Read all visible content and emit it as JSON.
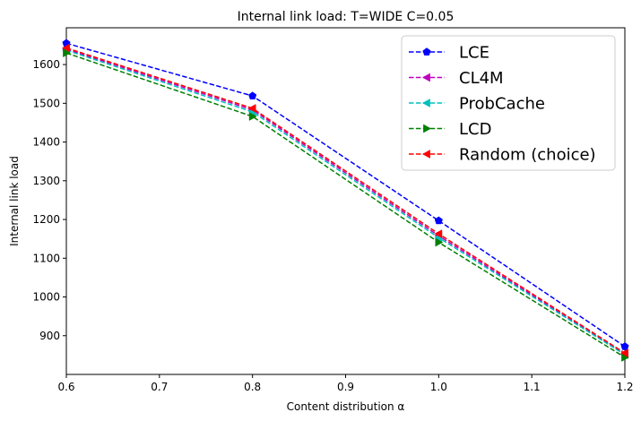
{
  "chart_data": {
    "type": "line",
    "title": "Internal link load: T=WIDE C=0.05",
    "xlabel": "Content distribution α",
    "ylabel": "Internal link load",
    "xlim": [
      0.6,
      1.2
    ],
    "ylim": [
      800,
      1695
    ],
    "xticks": [
      "0.6",
      "0.7",
      "0.8",
      "0.9",
      "1.0",
      "1.1",
      "1.2"
    ],
    "yticks": [
      "900",
      "1000",
      "1100",
      "1200",
      "1300",
      "1400",
      "1500",
      "1600"
    ],
    "x": [
      0.6,
      0.8,
      1.0,
      1.2
    ],
    "grid": false,
    "legend_position": "top-right",
    "series": [
      {
        "name": "LCE",
        "color": "#0000ff",
        "marker": "pentagon",
        "values": [
          1655,
          1519,
          1197,
          872
        ]
      },
      {
        "name": "CL4M",
        "color": "#bf00bf",
        "marker": "triangle-left",
        "values": [
          1640,
          1483,
          1158,
          853
        ]
      },
      {
        "name": "ProbCache",
        "color": "#00bfbf",
        "marker": "triangle-left",
        "values": [
          1637,
          1478,
          1153,
          851
        ]
      },
      {
        "name": "LCD",
        "color": "#008000",
        "marker": "triangle-right",
        "values": [
          1630,
          1466,
          1141,
          844
        ]
      },
      {
        "name": "Random (choice)",
        "color": "#ff0000",
        "marker": "triangle-left",
        "values": [
          1643,
          1487,
          1163,
          855
        ]
      }
    ]
  }
}
